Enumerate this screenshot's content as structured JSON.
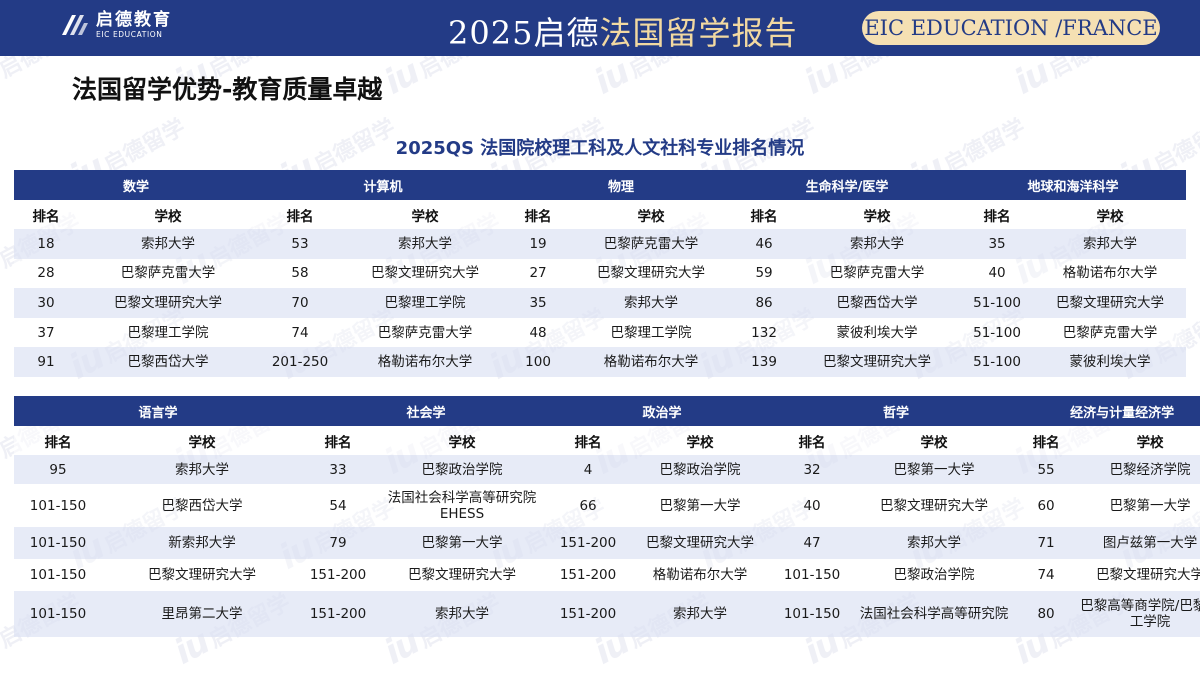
{
  "header": {
    "logo_cn": "启德教育",
    "logo_en": "EIC EDUCATION",
    "report_title_prefix": "2025启德",
    "report_title_highlight": "法国留学报告",
    "brand": "EIC EDUCATION /FRANCE"
  },
  "watermark": {
    "mark": "iu",
    "text": "启德留学"
  },
  "page": {
    "heading": "法国留学优势-教育质量卓越",
    "table_title": "2025QS 法国院校理工科及人文社科专业排名情况"
  },
  "colors": {
    "primary": "#233b86",
    "accent": "#f5e0b3",
    "row_alt": "#dae1f2"
  },
  "columns": {
    "rank": "排名",
    "school": "学校"
  },
  "table1": {
    "subjects": [
      "数学",
      "计算机",
      "物理",
      "生命科学/医学",
      "地球和海洋科学"
    ],
    "rows": [
      [
        {
          "rank": "18",
          "school": "索邦大学"
        },
        {
          "rank": "53",
          "school": "索邦大学"
        },
        {
          "rank": "19",
          "school": "巴黎萨克雷大学"
        },
        {
          "rank": "46",
          "school": "索邦大学"
        },
        {
          "rank": "35",
          "school": "索邦大学"
        }
      ],
      [
        {
          "rank": "28",
          "school": "巴黎萨克雷大学"
        },
        {
          "rank": "58",
          "school": "巴黎文理研究大学"
        },
        {
          "rank": "27",
          "school": "巴黎文理研究大学"
        },
        {
          "rank": "59",
          "school": "巴黎萨克雷大学"
        },
        {
          "rank": "40",
          "school": "格勒诺布尔大学"
        }
      ],
      [
        {
          "rank": "30",
          "school": "巴黎文理研究大学"
        },
        {
          "rank": "70",
          "school": "巴黎理工学院"
        },
        {
          "rank": "35",
          "school": "索邦大学"
        },
        {
          "rank": "86",
          "school": "巴黎西岱大学"
        },
        {
          "rank": "51-100",
          "school": "巴黎文理研究大学"
        }
      ],
      [
        {
          "rank": "37",
          "school": "巴黎理工学院"
        },
        {
          "rank": "74",
          "school": "巴黎萨克雷大学"
        },
        {
          "rank": "48",
          "school": "巴黎理工学院"
        },
        {
          "rank": "132",
          "school": "蒙彼利埃大学"
        },
        {
          "rank": "51-100",
          "school": "巴黎萨克雷大学"
        }
      ],
      [
        {
          "rank": "91",
          "school": "巴黎西岱大学"
        },
        {
          "rank": "201-250",
          "school": "格勒诺布尔大学"
        },
        {
          "rank": "100",
          "school": "格勒诺布尔大学"
        },
        {
          "rank": "139",
          "school": "巴黎文理研究大学"
        },
        {
          "rank": "51-100",
          "school": "蒙彼利埃大学"
        }
      ]
    ]
  },
  "table2": {
    "subjects": [
      "语言学",
      "社会学",
      "政治学",
      "哲学",
      "经济与计量经济学"
    ],
    "rows": [
      [
        {
          "rank": "95",
          "school": "索邦大学"
        },
        {
          "rank": "33",
          "school": "巴黎政治学院"
        },
        {
          "rank": "4",
          "school": "巴黎政治学院"
        },
        {
          "rank": "32",
          "school": "巴黎第一大学"
        },
        {
          "rank": "55",
          "school": "巴黎经济学院"
        }
      ],
      [
        {
          "rank": "101-150",
          "school": "巴黎西岱大学"
        },
        {
          "rank": "54",
          "school": "法国社会科学高等研究院EHESS"
        },
        {
          "rank": "66",
          "school": "巴黎第一大学"
        },
        {
          "rank": "40",
          "school": "巴黎文理研究大学"
        },
        {
          "rank": "60",
          "school": "巴黎第一大学"
        }
      ],
      [
        {
          "rank": "101-150",
          "school": "新索邦大学"
        },
        {
          "rank": "79",
          "school": "巴黎第一大学"
        },
        {
          "rank": "151-200",
          "school": "巴黎文理研究大学"
        },
        {
          "rank": "47",
          "school": "索邦大学"
        },
        {
          "rank": "71",
          "school": "图卢兹第一大学"
        }
      ],
      [
        {
          "rank": "101-150",
          "school": "巴黎文理研究大学"
        },
        {
          "rank": "151-200",
          "school": "巴黎文理研究大学"
        },
        {
          "rank": "151-200",
          "school": "格勒诺布尔大学"
        },
        {
          "rank": "101-150",
          "school": "巴黎政治学院"
        },
        {
          "rank": "74",
          "school": "巴黎文理研究大学"
        }
      ],
      [
        {
          "rank": "101-150",
          "school": "里昂第二大学"
        },
        {
          "rank": "151-200",
          "school": "索邦大学"
        },
        {
          "rank": "151-200",
          "school": "索邦大学"
        },
        {
          "rank": "101-150",
          "school": "法国社会科学高等研究院"
        },
        {
          "rank": "80",
          "school": "巴黎高等商学院/巴黎理工学院"
        }
      ]
    ]
  }
}
